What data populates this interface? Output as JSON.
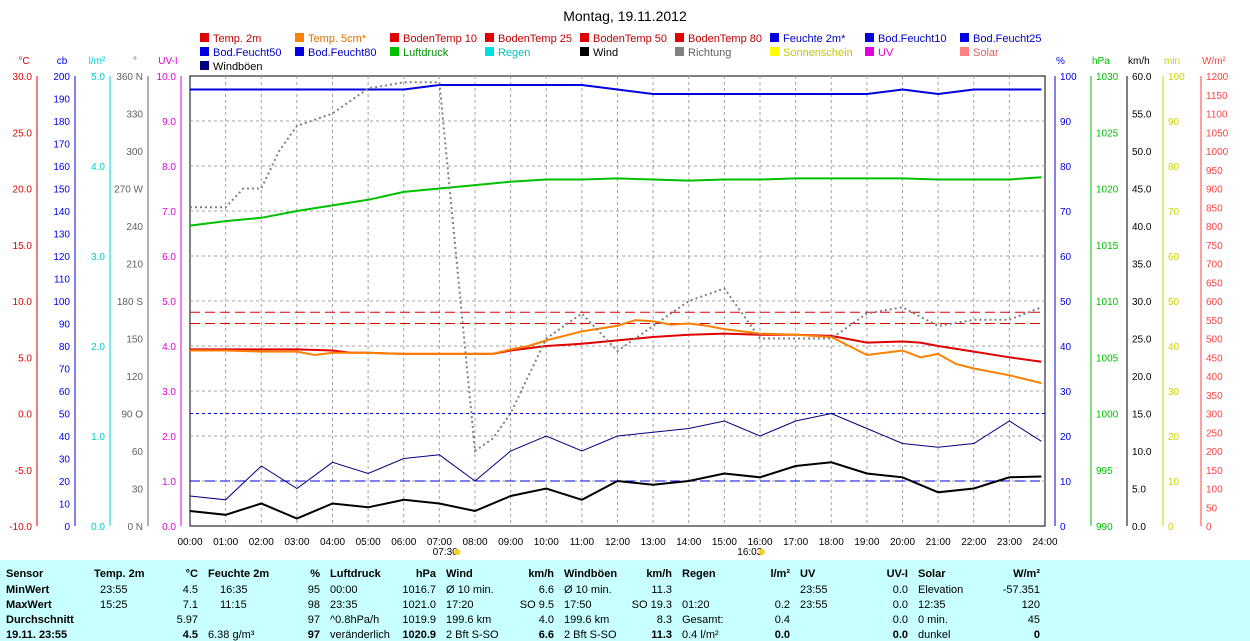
{
  "chart_data": {
    "type": "line",
    "title": "Montag, 19.11.2012",
    "legend": [
      {
        "name": "Temp. 2m",
        "color": "#e00000"
      },
      {
        "name": "Temp. 5cm*",
        "color": "#ff8000"
      },
      {
        "name": "BodenTemp 10",
        "color": "#e00000"
      },
      {
        "name": "BodenTemp 25",
        "color": "#e00000"
      },
      {
        "name": "BodenTemp 50",
        "color": "#e00000"
      },
      {
        "name": "BodenTemp 80",
        "color": "#e00000"
      },
      {
        "name": "Feuchte 2m*",
        "color": "#0000e0"
      },
      {
        "name": "Bod.Feucht10",
        "color": "#0000e0"
      },
      {
        "name": "Bod.Feucht25",
        "color": "#0000e0"
      },
      {
        "name": "Bod.Feucht50",
        "color": "#0000e0"
      },
      {
        "name": "Bod.Feucht80",
        "color": "#0000e0"
      },
      {
        "name": "Luftdruck",
        "color": "#00c000"
      },
      {
        "name": "Regen",
        "color": "#00e0e0"
      },
      {
        "name": "Wind",
        "color": "#000000"
      },
      {
        "name": "Richtung",
        "color": "#808080"
      },
      {
        "name": "Sonnenschein",
        "color": "#ffff00"
      },
      {
        "name": "UV",
        "color": "#e000e0"
      },
      {
        "name": "Solar",
        "color": "#ff8080"
      },
      {
        "name": "Windböen",
        "color": "#000080"
      }
    ],
    "x_ticks": [
      "00:00",
      "01:00",
      "02:00",
      "03:00",
      "04:00",
      "05:00",
      "06:00",
      "07:00",
      "08:00",
      "09:00",
      "10:00",
      "11:00",
      "12:00",
      "13:00",
      "14:00",
      "15:00",
      "16:00",
      "17:00",
      "18:00",
      "19:00",
      "20:00",
      "21:00",
      "22:00",
      "23:00",
      "24:00"
    ],
    "x_markers": [
      {
        "label": "07:30",
        "hour": 7.5
      },
      {
        "label": "16:03",
        "hour": 16.05
      }
    ],
    "left_axes": [
      {
        "unit": "°C",
        "color": "#e00000",
        "ticks": [
          "30.0",
          "25.0",
          "20.0",
          "15.0",
          "10.0",
          "5.0",
          "0.0",
          "-5.0",
          "-10.0"
        ]
      },
      {
        "unit": "cb",
        "color": "#0000e0",
        "ticks": [
          "200",
          "190",
          "180",
          "170",
          "160",
          "150",
          "140",
          "130",
          "120",
          "110",
          "100",
          "90",
          "80",
          "70",
          "60",
          "50",
          "40",
          "30",
          "20",
          "10",
          "0"
        ]
      },
      {
        "unit": "l/m²",
        "color": "#00d0d0",
        "ticks": [
          "5.0",
          "4.0",
          "3.0",
          "2.0",
          "1.0",
          "0.0"
        ]
      },
      {
        "unit": "°",
        "color": "#606060",
        "ticks": [
          "360 N",
          "330",
          "300",
          "270 W",
          "240",
          "210",
          "180 S",
          "150",
          "120",
          "90 O",
          "60",
          "30",
          "0 N"
        ]
      },
      {
        "unit": "UV-I",
        "color": "#e000e0",
        "ticks": [
          "10.0",
          "9.0",
          "8.0",
          "7.0",
          "6.0",
          "5.0",
          "4.0",
          "3.0",
          "2.0",
          "1.0",
          "0.0"
        ]
      }
    ],
    "right_axes": [
      {
        "unit": "%",
        "color": "#0000e0",
        "ticks": [
          "100",
          "90",
          "80",
          "70",
          "60",
          "50",
          "40",
          "30",
          "20",
          "10",
          "0"
        ]
      },
      {
        "unit": "hPa",
        "color": "#00c000",
        "ticks": [
          "1030",
          "1025",
          "1020",
          "1015",
          "1010",
          "1005",
          "1000",
          "995",
          "990"
        ]
      },
      {
        "unit": "km/h",
        "color": "#000000",
        "ticks": [
          "60.0",
          "55.0",
          "50.0",
          "45.0",
          "40.0",
          "35.0",
          "30.0",
          "25.0",
          "20.0",
          "15.0",
          "10.0",
          "5.0",
          "0.0"
        ]
      },
      {
        "unit": "min",
        "color": "#d0d000",
        "ticks": [
          "100",
          "90",
          "80",
          "70",
          "60",
          "50",
          "40",
          "30",
          "20",
          "10",
          "0"
        ]
      },
      {
        "unit": "W/m²",
        "color": "#ff4040",
        "ticks": [
          "1200",
          "1150",
          "1100",
          "1050",
          "1000",
          "950",
          "900",
          "850",
          "800",
          "750",
          "700",
          "650",
          "600",
          "550",
          "500",
          "450",
          "400",
          "350",
          "300",
          "250",
          "200",
          "150",
          "100",
          "50",
          "0"
        ]
      }
    ],
    "series": [
      {
        "name": "Temp. 2m",
        "color": "#e00000",
        "unit": "°C",
        "x": [
          0,
          1,
          2,
          3,
          4,
          4.5,
          5,
          6,
          7,
          8,
          8.5,
          9,
          10,
          11,
          12,
          13,
          14,
          15,
          16,
          17,
          18,
          19,
          20,
          20.5,
          21,
          22,
          23,
          23.9
        ],
        "y": [
          5.7,
          5.7,
          5.7,
          5.7,
          5.6,
          5.4,
          5.4,
          5.3,
          5.3,
          5.3,
          5.3,
          5.6,
          6.0,
          6.2,
          6.5,
          6.8,
          7.0,
          7.1,
          7.0,
          7.0,
          6.9,
          6.3,
          6.4,
          6.3,
          6.0,
          5.5,
          5.0,
          4.6
        ]
      },
      {
        "name": "Temp. 5cm*",
        "color": "#ff8000",
        "unit": "°C",
        "x": [
          0,
          1,
          2,
          3,
          3.5,
          4,
          5,
          6,
          7,
          8,
          8.5,
          9,
          9.5,
          10,
          11,
          12,
          12.5,
          13,
          13.5,
          14,
          14.5,
          15,
          16,
          17,
          18,
          18.5,
          19,
          20,
          20.5,
          21,
          21.5,
          22,
          23,
          23.9
        ],
        "y": [
          5.6,
          5.6,
          5.5,
          5.5,
          5.2,
          5.4,
          5.4,
          5.3,
          5.3,
          5.3,
          5.3,
          5.7,
          6.0,
          6.5,
          7.3,
          7.8,
          8.3,
          8.2,
          7.9,
          8.0,
          7.8,
          7.5,
          7.1,
          7.0,
          6.8,
          6.0,
          5.2,
          5.6,
          5.0,
          5.3,
          4.4,
          4.0,
          3.4,
          2.7
        ]
      },
      {
        "name": "Feuchte 2m*",
        "color": "#0000e0",
        "unit": "%",
        "x": [
          0,
          6,
          7,
          8,
          9,
          10,
          11,
          12,
          13,
          14,
          15,
          16,
          17,
          18,
          19,
          20,
          21,
          22,
          23,
          23.9
        ],
        "y": [
          97,
          97,
          98,
          98,
          98,
          98,
          98,
          97,
          96,
          96,
          96,
          96,
          96,
          96,
          96,
          97,
          96,
          97,
          97,
          97
        ]
      },
      {
        "name": "Luftdruck",
        "color": "#00c000",
        "unit": "hPa",
        "x": [
          0,
          1,
          2,
          3,
          4,
          5,
          6,
          7,
          8,
          9,
          10,
          11,
          12,
          13,
          14,
          15,
          16,
          17,
          18,
          19,
          20,
          21,
          22,
          23,
          23.9
        ],
        "y": [
          1016.7,
          1017.1,
          1017.4,
          1018.0,
          1018.5,
          1019.0,
          1019.7,
          1020.0,
          1020.3,
          1020.6,
          1020.8,
          1020.8,
          1020.9,
          1020.8,
          1020.7,
          1020.8,
          1020.8,
          1020.9,
          1020.9,
          1020.9,
          1020.9,
          1020.8,
          1020.8,
          1020.8,
          1021.0
        ]
      },
      {
        "name": "Wind",
        "color": "#000000",
        "unit": "km/h",
        "x": [
          0,
          1,
          2,
          3,
          4,
          5,
          6,
          7,
          8,
          9,
          10,
          11,
          12,
          13,
          14,
          15,
          16,
          17,
          18,
          19,
          20,
          21,
          22,
          23,
          23.9
        ],
        "y": [
          2.0,
          1.5,
          3.0,
          1.0,
          3.0,
          2.5,
          3.5,
          3.0,
          2.0,
          4.0,
          5.0,
          3.5,
          6.0,
          5.5,
          6.0,
          7.0,
          6.5,
          8.0,
          8.5,
          7.0,
          6.5,
          4.5,
          5.0,
          6.5,
          6.6
        ]
      },
      {
        "name": "Windböen",
        "color": "#000080",
        "unit": "km/h",
        "x": [
          0,
          1,
          2,
          3,
          4,
          5,
          6,
          7,
          8,
          9,
          10,
          11,
          12,
          13,
          14,
          15,
          16,
          17,
          18,
          19,
          20,
          21,
          22,
          23,
          23.9
        ],
        "y": [
          4.0,
          3.5,
          8.0,
          5.0,
          8.5,
          7.0,
          9.0,
          9.5,
          6.0,
          10.0,
          12.0,
          10.0,
          12.0,
          12.5,
          13.0,
          14.0,
          12.0,
          14.0,
          15.0,
          13.0,
          11.0,
          10.5,
          11.0,
          14.0,
          11.3
        ]
      },
      {
        "name": "Richtung",
        "color": "#808080",
        "unit": "°",
        "x": [
          0,
          1,
          1.5,
          2,
          2.5,
          3,
          4,
          5,
          6,
          7,
          8,
          8.5,
          9,
          9.5,
          10,
          11,
          12,
          13,
          14,
          15,
          16,
          17,
          18,
          19,
          20,
          21,
          22,
          23,
          23.9
        ],
        "y": [
          255,
          255,
          270,
          270,
          300,
          320,
          330,
          350,
          355,
          355,
          60,
          70,
          90,
          120,
          150,
          170,
          140,
          160,
          180,
          190,
          150,
          150,
          150,
          170,
          175,
          160,
          165,
          165,
          175
        ]
      }
    ],
    "hlines": [
      {
        "color": "#e00000",
        "dash": "10,5",
        "value": 9.0,
        "unit": "°C"
      },
      {
        "color": "#e00000",
        "dash": "10,5",
        "value": 8.0,
        "unit": "°C"
      },
      {
        "color": "#0000e0",
        "dash": "3,3",
        "value": 50,
        "unit": "cb"
      },
      {
        "color": "#0000e0",
        "dash": "10,5",
        "value": 20,
        "unit": "cb"
      }
    ],
    "ylim_temp": [
      -10,
      30
    ],
    "xlim": [
      0,
      24
    ]
  },
  "table": {
    "headers": [
      {
        "label": "Sensor",
        "unit": ""
      },
      {
        "label": "Temp. 2m",
        "unit": "°C"
      },
      {
        "label": "Feuchte 2m",
        "unit": "%"
      },
      {
        "label": "Luftdruck",
        "unit": "hPa"
      },
      {
        "label": "Wind",
        "unit": "km/h"
      },
      {
        "label": "Windböen",
        "unit": "km/h"
      },
      {
        "label": "Regen",
        "unit": "l/m²"
      },
      {
        "label": "UV",
        "unit": "UV-I"
      },
      {
        "label": "Solar",
        "unit": "W/m²"
      }
    ],
    "rows": [
      [
        "MinWert",
        "23:55",
        "4.5",
        "16:35",
        "95",
        "00:00",
        "1016.7",
        "Ø 10 min.",
        "6.6",
        "Ø 10 min.",
        "11.3",
        "",
        "",
        "23:55",
        "0.0",
        "Elevation",
        "-57.351"
      ],
      [
        "MaxWert",
        "15:25",
        "7.1",
        "11:15",
        "98",
        "23:35",
        "1021.0",
        "17:20",
        "SO 9.5",
        "17:50",
        "SO 19.3",
        "01:20",
        "0.2",
        "23:55",
        "0.0",
        "12:35",
        "120"
      ],
      [
        "Durchschnitt",
        "",
        "5.97",
        "",
        "97",
        "^0.8hPa/h",
        "1019.9",
        "199.6 km",
        "4.0",
        "199.6 km",
        "8.3",
        "Gesamt:",
        "0.4",
        "",
        "0.0",
        "0 min.",
        "45"
      ],
      [
        "19.11. 23:55",
        "",
        "4.5",
        "6.38 g/m³",
        "97",
        "veränderlich",
        "1020.9",
        "2 Bft S-SO",
        "6.6",
        "2 Bft S-SO",
        "11.3",
        "0.4 l/m²",
        "0.0",
        "",
        "0.0",
        "dunkel",
        "0"
      ]
    ]
  }
}
